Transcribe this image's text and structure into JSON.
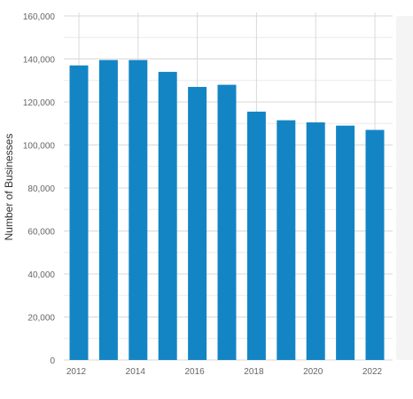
{
  "chart_data": {
    "type": "bar",
    "categories": [
      "2012",
      "2013",
      "2014",
      "2015",
      "2016",
      "2017",
      "2018",
      "2019",
      "2020",
      "2021",
      "2022"
    ],
    "values": [
      137000,
      139500,
      139500,
      134000,
      127000,
      128000,
      115500,
      111500,
      110500,
      109000,
      107000
    ],
    "x_tick_labels": [
      "2012",
      "2014",
      "2016",
      "2018",
      "2020",
      "2022"
    ],
    "y_tick_labels": [
      "0",
      "20,000",
      "40,000",
      "60,000",
      "80,000",
      "100,000",
      "120,000",
      "140,000",
      "160,000"
    ],
    "title": "",
    "xlabel": "",
    "ylabel": "Number of Businesses",
    "ylim": [
      0,
      160000
    ],
    "grid": true,
    "legend": "none",
    "colors": {
      "bar": "#1485C4",
      "grid_major": "#D9D9D9",
      "grid_minor": "#ECECEC",
      "year_grid": "#D9D9D9",
      "text": "#666666",
      "axis_label": "#333333"
    }
  }
}
